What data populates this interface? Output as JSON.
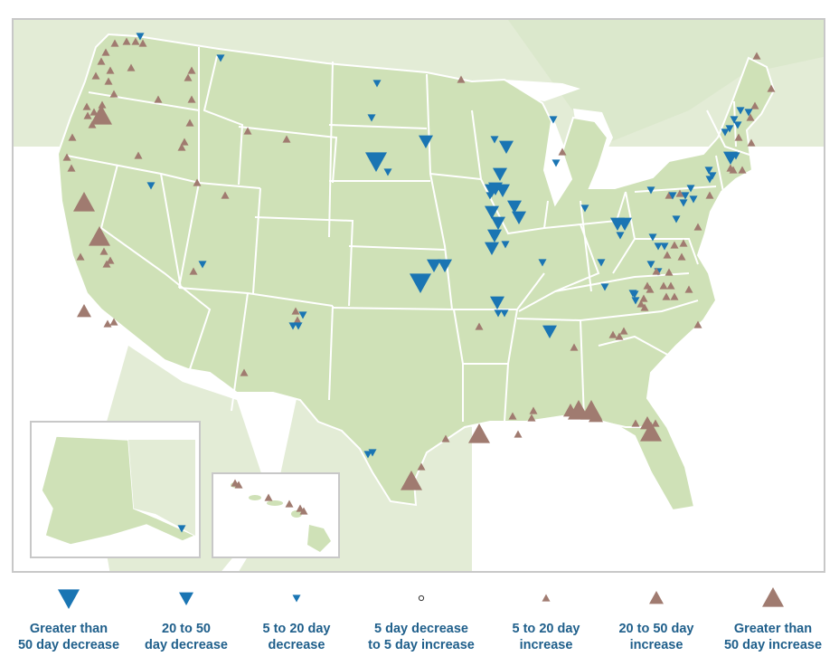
{
  "colors": {
    "land": "#cfe1b7",
    "land_foreign": "#e3ecd6",
    "water": "#ffffff",
    "border": "#ffffff",
    "decrease": "#1a75b3",
    "increase": "#a07b70",
    "neutral_fill": "#ffffff",
    "neutral_stroke": "#333333",
    "legend_text": "#1f5f8b"
  },
  "legend": [
    {
      "symbol": "triangle-down-large-icon",
      "label": "Greater than\n50 day decrease"
    },
    {
      "symbol": "triangle-down-medium-icon",
      "label": "20 to 50\nday decrease"
    },
    {
      "symbol": "triangle-down-small-icon",
      "label": "5 to 20 day\ndecrease"
    },
    {
      "symbol": "circle-open-icon",
      "label": "5 day decrease\nto 5 day increase"
    },
    {
      "symbol": "triangle-up-small-icon",
      "label": "5 to 20 day\nincrease"
    },
    {
      "symbol": "triangle-up-medium-icon",
      "label": "20 to 50 day\nincrease"
    },
    {
      "symbol": "triangle-up-large-icon",
      "label": "Greater than\n50 day increase"
    }
  ]
}
